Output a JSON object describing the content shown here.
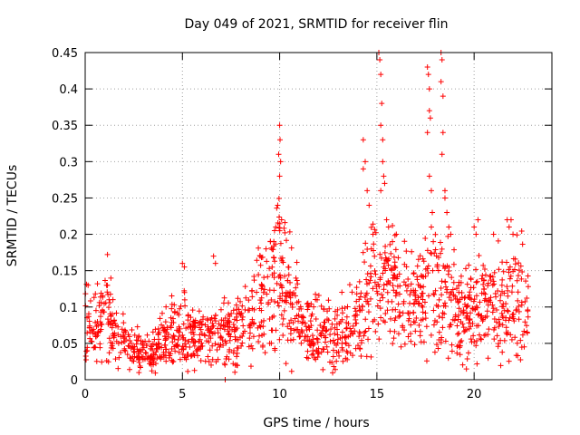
{
  "chart_data": {
    "type": "scatter",
    "title": "Day 049 of 2021, SRMTID for receiver flin",
    "xlabel": "GPS time / hours",
    "ylabel": "SRMTID / TECUs",
    "xlim": [
      0,
      24
    ],
    "ylim": [
      0,
      0.45
    ],
    "grid": true,
    "marker": "+",
    "marker_color": "#ff0000",
    "grid_color": "#a0a0a0",
    "x_ticks": [
      0,
      5,
      10,
      15,
      20
    ],
    "x_tick_labels": [
      "0",
      "5",
      "10",
      "15",
      "20"
    ],
    "y_ticks": [
      0,
      0.05,
      0.1,
      0.15,
      0.2,
      0.25,
      0.3,
      0.35,
      0.4,
      0.45
    ],
    "y_tick_labels": [
      "0",
      "0.05",
      "0.1",
      "0.15",
      "0.2",
      "0.25",
      "0.3",
      "0.35",
      "0.4",
      "0.45"
    ],
    "baseline": [
      [
        0,
        0.07
      ],
      [
        0.5,
        0.08
      ],
      [
        1,
        0.095
      ],
      [
        1.5,
        0.07
      ],
      [
        2,
        0.05
      ],
      [
        2.5,
        0.045
      ],
      [
        3,
        0.04
      ],
      [
        3.5,
        0.035
      ],
      [
        4,
        0.055
      ],
      [
        4.5,
        0.07
      ],
      [
        5,
        0.07
      ],
      [
        5.5,
        0.06
      ],
      [
        6,
        0.06
      ],
      [
        6.5,
        0.06
      ],
      [
        7,
        0.065
      ],
      [
        7.5,
        0.07
      ],
      [
        8,
        0.065
      ],
      [
        8.5,
        0.075
      ],
      [
        9,
        0.1
      ],
      [
        9.5,
        0.12
      ],
      [
        10,
        0.15
      ],
      [
        10.5,
        0.11
      ],
      [
        11,
        0.08
      ],
      [
        11.5,
        0.065
      ],
      [
        12,
        0.06
      ],
      [
        12.5,
        0.06
      ],
      [
        13,
        0.06
      ],
      [
        13.5,
        0.07
      ],
      [
        14,
        0.08
      ],
      [
        14.5,
        0.11
      ],
      [
        15,
        0.14
      ],
      [
        15.5,
        0.13
      ],
      [
        16,
        0.12
      ],
      [
        16.5,
        0.11
      ],
      [
        17,
        0.1
      ],
      [
        17.5,
        0.12
      ],
      [
        18,
        0.13
      ],
      [
        18.5,
        0.12
      ],
      [
        19,
        0.11
      ],
      [
        19.5,
        0.09
      ],
      [
        20,
        0.09
      ],
      [
        20.5,
        0.1
      ],
      [
        21,
        0.11
      ],
      [
        21.5,
        0.1
      ],
      [
        22,
        0.11
      ],
      [
        22.5,
        0.11
      ],
      [
        22.8,
        0.1
      ]
    ],
    "spikes": [
      [
        10.0,
        0.35
      ],
      [
        10.02,
        0.33
      ],
      [
        9.95,
        0.31
      ],
      [
        10.05,
        0.3
      ],
      [
        10.0,
        0.28
      ],
      [
        9.9,
        0.24
      ],
      [
        10.1,
        0.22
      ],
      [
        9.8,
        0.21
      ],
      [
        9.7,
        0.19
      ],
      [
        9.3,
        0.18
      ],
      [
        9.0,
        0.17
      ],
      [
        14.3,
        0.33
      ],
      [
        14.4,
        0.3
      ],
      [
        14.3,
        0.29
      ],
      [
        14.5,
        0.26
      ],
      [
        14.6,
        0.24
      ],
      [
        14.8,
        0.2
      ],
      [
        15.1,
        0.45
      ],
      [
        15.15,
        0.44
      ],
      [
        15.2,
        0.42
      ],
      [
        15.25,
        0.38
      ],
      [
        15.2,
        0.35
      ],
      [
        15.3,
        0.33
      ],
      [
        15.3,
        0.3
      ],
      [
        15.35,
        0.28
      ],
      [
        15.4,
        0.27
      ],
      [
        15.2,
        0.26
      ],
      [
        15.5,
        0.22
      ],
      [
        15.6,
        0.21
      ],
      [
        16.0,
        0.2
      ],
      [
        15.8,
        0.19
      ],
      [
        17.6,
        0.43
      ],
      [
        17.65,
        0.42
      ],
      [
        17.7,
        0.4
      ],
      [
        17.7,
        0.37
      ],
      [
        17.75,
        0.36
      ],
      [
        17.6,
        0.34
      ],
      [
        17.7,
        0.28
      ],
      [
        17.8,
        0.26
      ],
      [
        17.85,
        0.23
      ],
      [
        17.8,
        0.21
      ],
      [
        17.9,
        0.19
      ],
      [
        18.3,
        0.45
      ],
      [
        18.35,
        0.44
      ],
      [
        18.3,
        0.41
      ],
      [
        18.4,
        0.39
      ],
      [
        18.4,
        0.34
      ],
      [
        18.35,
        0.31
      ],
      [
        18.5,
        0.26
      ],
      [
        18.5,
        0.25
      ],
      [
        18.6,
        0.23
      ],
      [
        18.7,
        0.21
      ],
      [
        18.8,
        0.2
      ],
      [
        20.0,
        0.21
      ],
      [
        20.1,
        0.2
      ],
      [
        20.2,
        0.22
      ],
      [
        21.0,
        0.2
      ],
      [
        21.7,
        0.22
      ],
      [
        21.8,
        0.21
      ],
      [
        21.9,
        0.22
      ],
      [
        22.0,
        0.2
      ],
      [
        5.0,
        0.16
      ],
      [
        5.1,
        0.155
      ],
      [
        6.6,
        0.17
      ],
      [
        6.7,
        0.16
      ],
      [
        0.15,
        0.13
      ],
      [
        1.1,
        0.13
      ],
      [
        7.2,
        0.0
      ]
    ]
  }
}
